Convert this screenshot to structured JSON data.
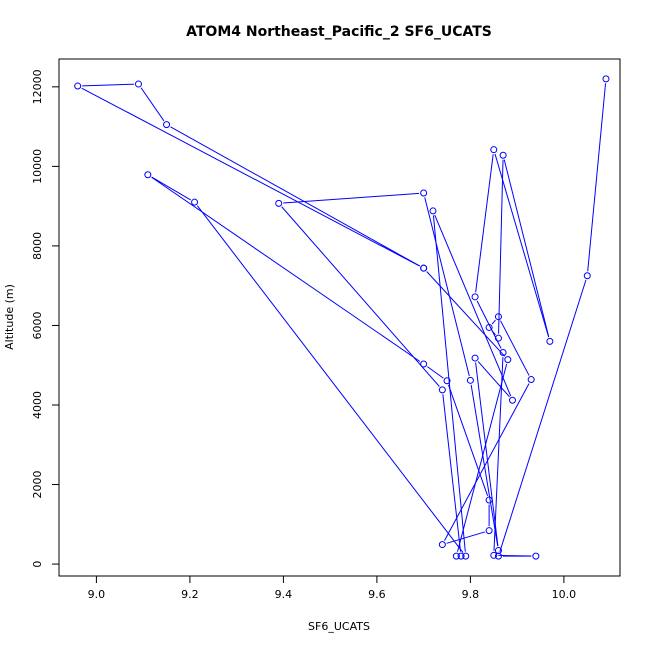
{
  "chart_data": {
    "type": "line",
    "title": "ATOM4 Northeast_Pacific_2 SF6_UCATS",
    "xlabel": "SF6_UCATS",
    "ylabel": "Altitude (m)",
    "xlim": [
      8.92,
      10.12
    ],
    "ylim": [
      -300,
      12700
    ],
    "xticks": [
      9.0,
      9.2,
      9.4,
      9.6,
      9.8,
      10.0
    ],
    "xtick_labels": [
      "9.0",
      "9.2",
      "9.4",
      "9.6",
      "9.8",
      "10.0"
    ],
    "yticks": [
      0,
      2000,
      4000,
      6000,
      8000,
      10000,
      12000
    ],
    "ytick_labels": [
      "0",
      "2000",
      "4000",
      "6000",
      "8000",
      "10000",
      "12000"
    ],
    "grid": false,
    "legend": "none",
    "colors": {
      "series": "#0000ff",
      "axis": "#000000"
    },
    "series": [
      {
        "marker": "open-circle",
        "x": [
          10.09,
          10.05,
          9.86,
          9.94,
          9.85,
          9.87,
          9.81,
          9.85,
          9.97,
          9.87,
          9.86,
          9.84,
          9.86,
          9.93,
          9.74,
          9.84,
          9.84,
          9.75,
          9.7,
          9.11,
          9.21,
          9.79,
          9.72,
          9.89,
          9.81,
          9.86,
          9.8,
          9.7,
          9.39,
          9.74,
          9.78,
          9.77,
          9.88,
          9.7,
          8.96,
          9.09,
          9.15,
          9.7
        ],
        "y": [
          12200,
          7250,
          200,
          200,
          220,
          5320,
          6720,
          10420,
          5600,
          10280,
          5680,
          5950,
          6220,
          4640,
          490,
          840,
          1610,
          4610,
          5030,
          9790,
          9100,
          200,
          8880,
          4120,
          5180,
          340,
          4620,
          9330,
          9070,
          4380,
          200,
          200,
          5140,
          7440,
          12020,
          12070,
          11050,
          7440
        ]
      }
    ]
  }
}
